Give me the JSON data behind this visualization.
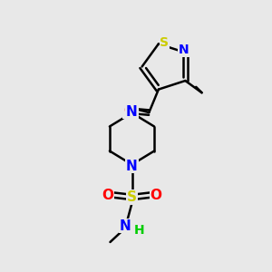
{
  "bg_color": "#e8e8e8",
  "line_color": "#000000",
  "N_color": "#0000ff",
  "O_color": "#ff0000",
  "S_color": "#cccc00",
  "H_color": "#00cc00",
  "figsize": [
    3.0,
    3.0
  ],
  "dpi": 100,
  "xlim": [
    0,
    10
  ],
  "ylim": [
    0,
    10
  ]
}
